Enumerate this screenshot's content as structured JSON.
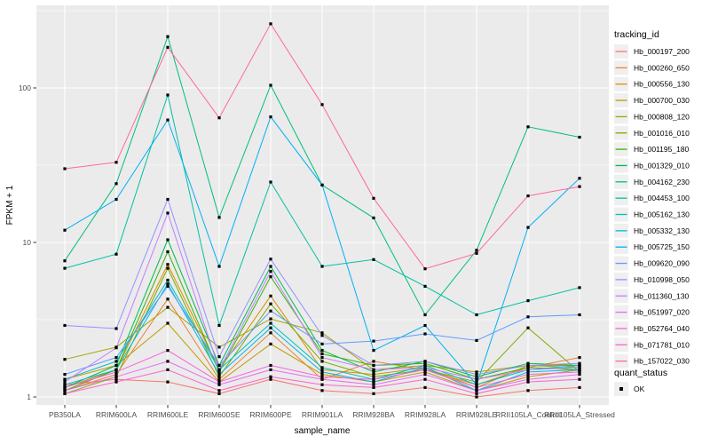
{
  "chart_data": {
    "type": "line",
    "title": "",
    "xlabel": "sample_name",
    "ylabel": "FPKM + 1",
    "y_scale": "log10",
    "y_ticks": [
      "1",
      "10",
      "100"
    ],
    "y_tick_values": [
      1,
      10,
      100
    ],
    "ylim": [
      0.89,
      340
    ],
    "grid": "major-white-minor-white-on-grey-panel",
    "legend_position": "right",
    "panel_background": "#EBEBEB",
    "gridline_color": "#FFFFFF",
    "point_shape": "filled-square",
    "point_color": "#000000",
    "categories": [
      "PB350LA",
      "RRIM600LA",
      "RRIM600LE",
      "RRIM600SE",
      "RRIM600PE",
      "RRIM901LA",
      "RRIM928BA",
      "RRIM928LA",
      "RRIM928LE",
      "RRII105LA_Control",
      "RRII105LA_Stressed"
    ],
    "series": [
      {
        "name": "Hb_000197_200",
        "color": "#F8766D",
        "values": [
          1.2,
          1.3,
          1.25,
          1.05,
          1.3,
          1.1,
          1.05,
          1.15,
          1.0,
          1.1,
          1.15
        ]
      },
      {
        "name": "Hb_000260_650",
        "color": "#EA8331",
        "values": [
          1.1,
          1.4,
          4.3,
          1.3,
          2.6,
          1.3,
          1.7,
          1.5,
          1.2,
          1.55,
          1.8
        ]
      },
      {
        "name": "Hb_000556_130",
        "color": "#D89000",
        "values": [
          1.15,
          1.5,
          7.2,
          1.5,
          4.5,
          1.5,
          1.4,
          1.55,
          1.15,
          1.6,
          1.6
        ]
      },
      {
        "name": "Hb_000700_030",
        "color": "#C09B00",
        "values": [
          1.3,
          1.6,
          3.0,
          1.25,
          2.2,
          1.4,
          1.25,
          1.45,
          1.1,
          1.35,
          1.5
        ]
      },
      {
        "name": "Hb_000808_120",
        "color": "#A3A500",
        "values": [
          1.75,
          2.1,
          3.8,
          2.1,
          3.2,
          2.6,
          1.5,
          1.6,
          1.45,
          1.6,
          1.55
        ]
      },
      {
        "name": "Hb_001016_010",
        "color": "#7CAE00",
        "values": [
          1.05,
          1.35,
          6.8,
          1.35,
          4.0,
          1.7,
          1.35,
          1.5,
          1.25,
          2.8,
          1.45
        ]
      },
      {
        "name": "Hb_001195_180",
        "color": "#39B600",
        "values": [
          1.1,
          1.5,
          8.7,
          1.45,
          6.0,
          1.9,
          1.6,
          1.65,
          1.3,
          1.55,
          1.5
        ]
      },
      {
        "name": "Hb_001329_010",
        "color": "#00BB4E",
        "values": [
          1.15,
          1.6,
          10.4,
          1.6,
          7.0,
          2.0,
          1.45,
          1.7,
          1.35,
          1.65,
          1.6
        ]
      },
      {
        "name": "Hb_004162_230",
        "color": "#00BF7D",
        "values": [
          7.6,
          24,
          215,
          14.5,
          104,
          23.5,
          14.4,
          3.4,
          8.9,
          56,
          48
        ]
      },
      {
        "name": "Hb_004453_100",
        "color": "#00C1A3",
        "values": [
          6.8,
          8.4,
          90,
          2.9,
          24.6,
          7.0,
          7.75,
          5.2,
          3.4,
          4.2,
          5.1
        ]
      },
      {
        "name": "Hb_005162_130",
        "color": "#00BFC4",
        "values": [
          1.3,
          1.7,
          5.7,
          1.5,
          3.0,
          1.55,
          1.3,
          1.6,
          1.2,
          1.5,
          1.6
        ]
      },
      {
        "name": "Hb_005332_130",
        "color": "#00BADE",
        "values": [
          1.2,
          1.5,
          5.4,
          1.4,
          2.8,
          1.45,
          1.25,
          1.55,
          1.1,
          1.45,
          1.5
        ]
      },
      {
        "name": "Hb_005725_150",
        "color": "#00B0F6",
        "values": [
          12,
          19,
          62,
          7.0,
          65,
          23.5,
          2.0,
          2.9,
          1.2,
          12.5,
          26
        ]
      },
      {
        "name": "Hb_009620_090",
        "color": "#619CFF",
        "values": [
          1.4,
          1.8,
          5.2,
          1.6,
          3.6,
          2.2,
          2.3,
          2.56,
          2.32,
          3.3,
          3.4
        ]
      },
      {
        "name": "Hb_010998_050",
        "color": "#9590FF",
        "values": [
          2.9,
          2.77,
          19,
          1.82,
          7.8,
          2.5,
          1.6,
          1.7,
          1.4,
          1.6,
          1.65
        ]
      },
      {
        "name": "Hb_011360_130",
        "color": "#C77CFF",
        "values": [
          1.25,
          2.08,
          15.5,
          1.5,
          6.5,
          1.8,
          1.5,
          1.55,
          1.3,
          1.5,
          1.55
        ]
      },
      {
        "name": "Hb_051997_020",
        "color": "#E76BF3",
        "values": [
          1.1,
          1.35,
          1.7,
          1.2,
          1.5,
          1.3,
          1.2,
          1.4,
          1.1,
          1.3,
          1.4
        ]
      },
      {
        "name": "Hb_052764_040",
        "color": "#FA62DB",
        "values": [
          1.15,
          1.45,
          2.0,
          1.25,
          1.6,
          1.35,
          1.3,
          1.5,
          1.15,
          1.4,
          1.45
        ]
      },
      {
        "name": "Hb_071781_010",
        "color": "#FF61CC",
        "values": [
          1.05,
          1.25,
          1.5,
          1.1,
          1.35,
          1.2,
          1.15,
          1.3,
          1.05,
          1.25,
          1.3
        ]
      },
      {
        "name": "Hb_157022_030",
        "color": "#FF67A4",
        "values": [
          30,
          33,
          183,
          64,
          260,
          78,
          19.3,
          6.75,
          8.5,
          20,
          23
        ]
      }
    ]
  },
  "legend": {
    "tracking_title": "tracking_id",
    "quant_title": "quant_status",
    "quant_items": [
      {
        "label": "OK",
        "marker": "black-square"
      }
    ]
  }
}
